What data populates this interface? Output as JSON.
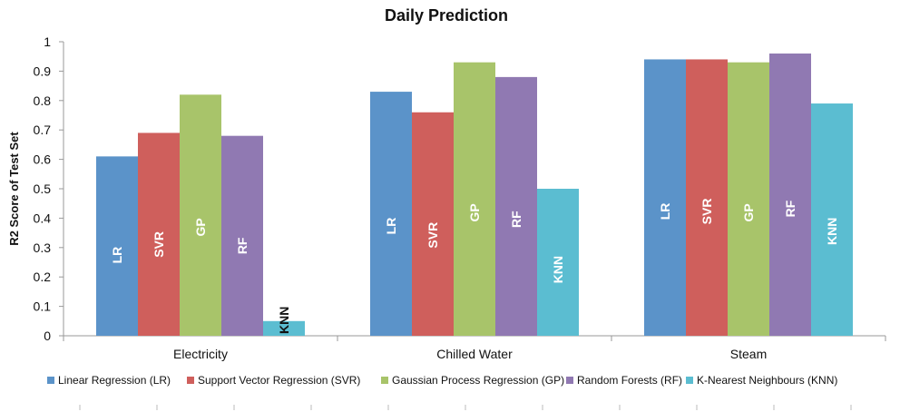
{
  "chart_data": {
    "type": "bar",
    "title": "Daily Prediction",
    "xlabel": "",
    "ylabel": "R2 Score of Test Set",
    "ylim": [
      0,
      1
    ],
    "yticks": [
      "0",
      "0.1",
      "0.2",
      "0.3",
      "0.4",
      "0.5",
      "0.6",
      "0.7",
      "0.8",
      "0.9",
      "1"
    ],
    "categories": [
      "Electricity",
      "Chilled Water",
      "Steam"
    ],
    "series": [
      {
        "name": "Linear Regression (LR)",
        "label": "LR",
        "color": "#5b93c9",
        "label_color": "#ffffff",
        "values": [
          0.61,
          0.83,
          0.94
        ]
      },
      {
        "name": "Support Vector Regression (SVR)",
        "label": "SVR",
        "color": "#cf5f5c",
        "label_color": "#ffffff",
        "values": [
          0.69,
          0.76,
          0.94
        ]
      },
      {
        "name": "Gaussian Process Regression (GP)",
        "label": "GP",
        "color": "#a8c46a",
        "label_color": "#ffffff",
        "values": [
          0.82,
          0.93,
          0.93
        ]
      },
      {
        "name": "Random Forests (RF)",
        "label": "RF",
        "color": "#9079b2",
        "label_color": "#ffffff",
        "values": [
          0.68,
          0.88,
          0.96
        ]
      },
      {
        "name": "K-Nearest Neighbours (KNN)",
        "label": "KNN",
        "color": "#5bbdd1",
        "label_color": "#ffffff",
        "values": [
          0.05,
          0.5,
          0.79
        ]
      }
    ],
    "grid": false,
    "legend_position": "bottom"
  }
}
